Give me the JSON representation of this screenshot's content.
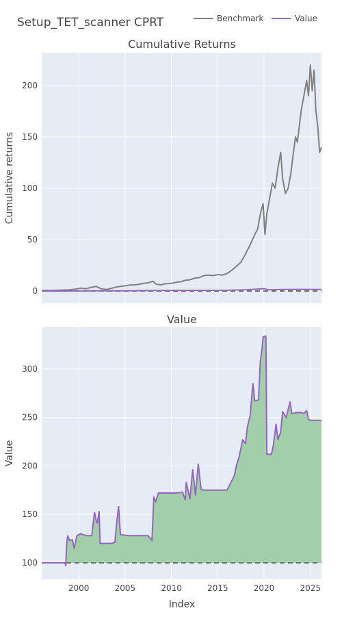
{
  "title": "Setup_TET_scanner CPRT",
  "legend": {
    "placement": "top-right",
    "items": [
      {
        "name": "Benchmark",
        "color": "#808080"
      },
      {
        "name": "Value",
        "color": "#9467bd"
      }
    ]
  },
  "colors": {
    "plot_bg": "#e5ecf6",
    "grid": "#ffffff",
    "benchmark": "#808080",
    "value": "#9467bd",
    "fill": "#a2cea9",
    "baseline": "#707070",
    "text": "#444444"
  },
  "chart_data": [
    {
      "type": "line",
      "title": "Cumulative Returns",
      "ylabel": "Cumulative returns",
      "xlabel": "",
      "xlim": [
        1996.0,
        2026.2
      ],
      "ylim": [
        -12,
        232
      ],
      "yticks": [
        0,
        50,
        100,
        150,
        200
      ],
      "xticks": [
        2000,
        2005,
        2010,
        2015,
        2020,
        2025
      ],
      "grid": true,
      "baseline": 0,
      "series": [
        {
          "name": "Benchmark",
          "x": [
            1996.0,
            1997.0,
            1998.0,
            1999.0,
            1999.8,
            2000.2,
            2000.8,
            2001.3,
            2001.9,
            2002.4,
            2003.0,
            2003.5,
            2004.0,
            2004.5,
            2005.0,
            2005.5,
            2006.0,
            2006.5,
            2007.0,
            2007.5,
            2008.0,
            2008.4,
            2008.9,
            2009.3,
            2010.0,
            2010.5,
            2011.0,
            2011.5,
            2012.0,
            2012.5,
            2013.0,
            2013.5,
            2014.0,
            2014.5,
            2015.0,
            2015.5,
            2016.0,
            2016.5,
            2017.0,
            2017.5,
            2018.0,
            2018.5,
            2019.0,
            2019.3,
            2019.6,
            2019.9,
            2020.1,
            2020.3,
            2020.6,
            2020.9,
            2021.2,
            2021.5,
            2021.8,
            2022.0,
            2022.3,
            2022.6,
            2022.9,
            2023.1,
            2023.4,
            2023.6,
            2023.8,
            2024.0,
            2024.2,
            2024.4,
            2024.6,
            2024.8,
            2025.0,
            2025.2,
            2025.4,
            2025.6,
            2025.8,
            2026.0,
            2026.2
          ],
          "y": [
            0.5,
            0.6,
            0.8,
            1.2,
            2.0,
            2.8,
            2.2,
            3.5,
            4.5,
            2.2,
            1.5,
            2.5,
            3.8,
            4.5,
            5.0,
            5.8,
            6.0,
            6.5,
            7.5,
            8.0,
            9.5,
            6.5,
            6.0,
            7.0,
            7.5,
            8.5,
            9.0,
            10.5,
            11.0,
            12.5,
            13.0,
            15.0,
            15.5,
            15.0,
            16.0,
            15.5,
            17.0,
            20.0,
            24.0,
            28.0,
            36.0,
            45.0,
            55.0,
            60.0,
            75.0,
            85.0,
            55.0,
            75.0,
            90.0,
            105.0,
            100.0,
            120.0,
            135.0,
            110.0,
            95.0,
            100.0,
            115.0,
            130.0,
            150.0,
            145.0,
            160.0,
            175.0,
            185.0,
            195.0,
            205.0,
            190.0,
            220.0,
            195.0,
            215.0,
            175.0,
            160.0,
            135.0,
            140.0
          ]
        },
        {
          "name": "Value",
          "x": [
            1996.0,
            1998.5,
            2001.0,
            2005.0,
            2008.0,
            2012.0,
            2016.0,
            2018.0,
            2019.5,
            2020.0,
            2020.5,
            2022.0,
            2024.0,
            2026.2
          ],
          "y": [
            0.0,
            0.0,
            0.2,
            0.25,
            0.5,
            0.65,
            0.75,
            1.2,
            2.0,
            2.3,
            1.2,
            1.5,
            1.55,
            1.5
          ]
        }
      ]
    },
    {
      "type": "area",
      "title": "Value",
      "ylabel": "Value",
      "xlabel": "Index",
      "xlim": [
        1996.0,
        2026.2
      ],
      "ylim": [
        83,
        343
      ],
      "yticks": [
        100,
        150,
        200,
        250,
        300
      ],
      "xticks": [
        2000,
        2005,
        2010,
        2015,
        2020,
        2025
      ],
      "grid": true,
      "baseline": 100,
      "series": [
        {
          "name": "Value",
          "x": [
            1996.0,
            1998.5,
            1998.6,
            1998.7,
            1998.8,
            1999.0,
            1999.3,
            1999.5,
            1999.8,
            2000.2,
            2000.8,
            2001.4,
            2001.7,
            2001.9,
            2002.0,
            2002.2,
            2002.3,
            2003.5,
            2003.9,
            2004.1,
            2004.3,
            2004.5,
            2005.5,
            2007.5,
            2007.9,
            2008.1,
            2008.3,
            2008.6,
            2009.0,
            2010.5,
            2011.2,
            2011.5,
            2011.6,
            2012.0,
            2012.3,
            2012.6,
            2012.9,
            2013.2,
            2013.5,
            2014.0,
            2015.0,
            2016.0,
            2016.8,
            2017.0,
            2017.3,
            2017.7,
            2018.0,
            2018.2,
            2018.5,
            2018.8,
            2019.0,
            2019.4,
            2019.6,
            2019.8,
            2019.9,
            2020.2,
            2020.3,
            2020.8,
            2021.0,
            2021.3,
            2021.5,
            2021.8,
            2022.0,
            2022.4,
            2022.8,
            2023.0,
            2023.5,
            2024.0,
            2024.3,
            2024.6,
            2024.8,
            2025.0,
            2025.5,
            2026.2
          ],
          "y": [
            100,
            100,
            97,
            120,
            128,
            123,
            124,
            115,
            128,
            130,
            128,
            128,
            152,
            143,
            141,
            153,
            120,
            120,
            121,
            142,
            158,
            129,
            128,
            128,
            123,
            168,
            163,
            172,
            172,
            172,
            173,
            165,
            183,
            166,
            196,
            170,
            202,
            176,
            175,
            175,
            175,
            175,
            190,
            200,
            209,
            227,
            223,
            240,
            252,
            285,
            267,
            268,
            308,
            322,
            333,
            334,
            212,
            212,
            221,
            243,
            227,
            235,
            256,
            250,
            266,
            254,
            255,
            255,
            254,
            257,
            248,
            247,
            247,
            247
          ]
        }
      ]
    }
  ]
}
